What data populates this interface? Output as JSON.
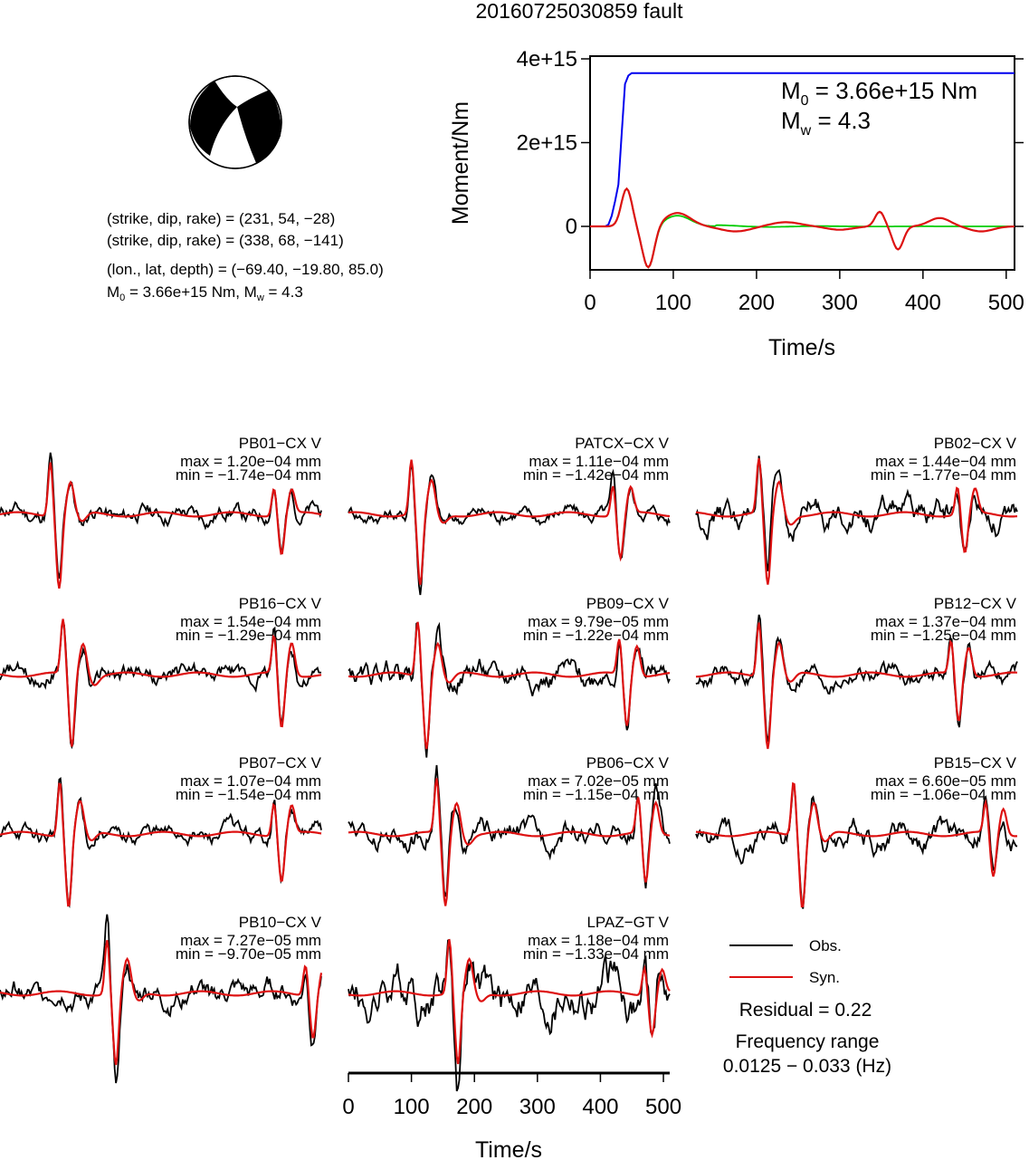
{
  "title": "20160725030859 fault",
  "source_params": {
    "line1": "(strike, dip, rake) = (231, 54, −28)",
    "line2": "(strike, dip, rake) = (338, 68, −141)",
    "line3": "(lon., lat, depth) = (−69.40, −19.80, 85.0)",
    "line4_m0": "M",
    "line4_m0_sub": "0",
    "line4_rest": " = 3.66e+15 Nm, M",
    "line4_mw_sub": "w",
    "line4_end": " = 4.3"
  },
  "moment_chart": {
    "type": "line",
    "ylabel": "Moment/Nm",
    "xlabel": "Time/s",
    "xlim": [
      0,
      510
    ],
    "ylim": [
      -1000000000000000.0,
      4000000000000000.0
    ],
    "xticks": [
      0,
      100,
      200,
      300,
      400,
      500
    ],
    "xtick_labels": [
      "0",
      "100",
      "200",
      "300",
      "400",
      "500"
    ],
    "yticks": [
      0,
      2000000000000000.0,
      4000000000000000.0
    ],
    "ytick_labels": [
      "0",
      "2e+15",
      "4e+15"
    ],
    "m0_label": "M",
    "m0_sub": "0",
    "m0_value": " = 3.66e+15 Nm",
    "mw_label": "M",
    "mw_sub": "w",
    "mw_value": " = 4.3",
    "series": [
      {
        "color": "#0000ee",
        "kind": "cumulative_moment",
        "x": [
          0,
          18,
          22,
          26,
          30,
          34,
          38,
          42,
          46,
          50,
          55,
          510
        ],
        "y": [
          0,
          0,
          40000000000000.0,
          250000000000000.0,
          600000000000000.0,
          1000000000000000.0,
          2200000000000000.0,
          3400000000000000.0,
          3600000000000000.0,
          3660000000000000.0,
          3660000000000000.0,
          3660000000000000.0
        ]
      },
      {
        "color": "#00cc00",
        "kind": "moment_rate"
      },
      {
        "color": "#dd1111",
        "kind": "filtered_moment_rate"
      }
    ]
  },
  "stations": [
    {
      "name": "PB01−CX V",
      "max": "max = 1.20e−04 mm",
      "min": "min = −1.74e−04 mm",
      "main_t": 80,
      "late_t": 435,
      "late_amp": 0.55,
      "noise": 0.14
    },
    {
      "name": "PATCX−CX V",
      "max": "max = 1.11e−04 mm",
      "min": "min = −1.42e−04 mm",
      "main_t": 100,
      "late_t": 420,
      "late_amp": 0.6,
      "noise": 0.12
    },
    {
      "name": "PB02−CX V",
      "max": "max = 1.44e−04 mm",
      "min": "min = −1.77e−04 mm",
      "main_t": 100,
      "late_t": 415,
      "late_amp": 0.55,
      "noise": 0.22
    },
    {
      "name": "PB16−CX V",
      "max": "max = 1.54e−04 mm",
      "min": "min = −1.29e−04 mm",
      "main_t": 100,
      "late_t": 435,
      "late_amp": 0.75,
      "noise": 0.15
    },
    {
      "name": "PB09−CX V",
      "max": "max = 9.79e−05 mm",
      "min": "min = −1.22e−04 mm",
      "main_t": 110,
      "late_t": 430,
      "late_amp": 0.7,
      "noise": 0.2
    },
    {
      "name": "PB12−CX V",
      "max": "max = 1.37e−04 mm",
      "min": "min = −1.25e−04 mm",
      "main_t": 100,
      "late_t": 405,
      "late_amp": 0.65,
      "noise": 0.15
    },
    {
      "name": "PB07−CX V",
      "max": "max = 1.07e−04 mm",
      "min": "min = −1.54e−04 mm",
      "main_t": 95,
      "late_t": 435,
      "late_amp": 0.65,
      "noise": 0.14
    },
    {
      "name": "PB06−CX V",
      "max": "max = 7.02e−05 mm",
      "min": "min = −1.15e−04 mm",
      "main_t": 140,
      "late_t": 460,
      "late_amp": 0.7,
      "noise": 0.18
    },
    {
      "name": "PB15−CX V",
      "max": "max = 6.60e−05 mm",
      "min": "min = −1.06e−04 mm",
      "main_t": 155,
      "late_t": 460,
      "late_amp": 0.6,
      "noise": 0.2
    },
    {
      "name": "PB10−CX V",
      "max": "max = 7.27e−05 mm",
      "min": "min = −9.70e−05 mm",
      "main_t": 170,
      "late_t": 485,
      "late_amp": 0.6,
      "noise": 0.2
    },
    {
      "name": "LPAZ−GT V",
      "max": "max = 1.18e−04 mm",
      "min": "min = −1.33e−04 mm",
      "main_t": 160,
      "late_t": 470,
      "late_amp": 0.55,
      "noise": 0.35
    }
  ],
  "waveform_axis": {
    "xlabel": "Time/s",
    "xlim": [
      0,
      510
    ],
    "xticks": [
      0,
      100,
      200,
      300,
      400,
      500
    ],
    "xtick_labels": [
      "0",
      "100",
      "200",
      "300",
      "400",
      "500"
    ]
  },
  "legend": {
    "obs_label": "Obs.",
    "syn_label": "Syn.",
    "obs_color": "#000000",
    "syn_color": "#dd1111"
  },
  "residual": "Residual = 0.22",
  "freq_title": "Frequency range",
  "freq_range": "0.0125 − 0.033 (Hz)"
}
